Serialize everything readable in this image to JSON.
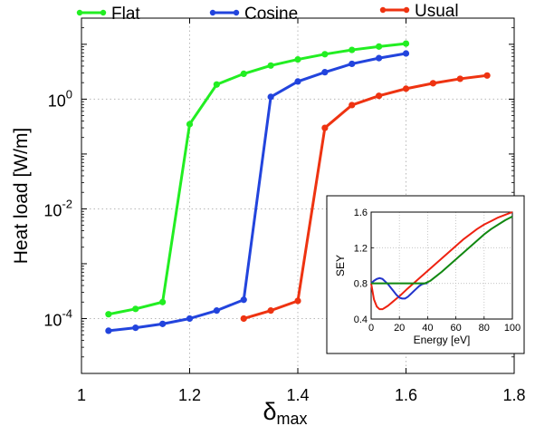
{
  "chart_data": [
    {
      "type": "line",
      "title": "",
      "xlabel": "δ",
      "xlabel_sub": "max",
      "ylabel": "Heat load [W/m]",
      "xlim": [
        1.0,
        1.8
      ],
      "ylim": [
        1e-05,
        30
      ],
      "yscale": "log",
      "grid": true,
      "legend_position": "top",
      "x_ticks": [
        1.0,
        1.2,
        1.4,
        1.6,
        1.8
      ],
      "x_tick_labels": [
        "1",
        "1.2",
        "1.4",
        "1.6",
        "1.8"
      ],
      "y_ticks": [
        0.0001,
        0.01,
        1
      ],
      "y_tick_labels": [
        {
          "base": "10",
          "exp": "-4"
        },
        {
          "base": "10",
          "exp": "-2"
        },
        {
          "base": "10",
          "exp": "0"
        }
      ],
      "series": [
        {
          "name": "Flat",
          "color": "#22ee22",
          "x": [
            1.05,
            1.1,
            1.15,
            1.2,
            1.25,
            1.3,
            1.35,
            1.4,
            1.45,
            1.5,
            1.55,
            1.6
          ],
          "y": [
            0.00012,
            0.00015,
            0.0002,
            0.35,
            1.85,
            2.9,
            4.1,
            5.3,
            6.6,
            7.9,
            9.1,
            10.3
          ]
        },
        {
          "name": "Cosine",
          "color": "#2244dd",
          "x": [
            1.05,
            1.1,
            1.15,
            1.2,
            1.25,
            1.3,
            1.35,
            1.4,
            1.45,
            1.5,
            1.55,
            1.6
          ],
          "y": [
            6e-05,
            6.8e-05,
            8e-05,
            0.0001,
            0.00014,
            0.00022,
            1.1,
            2.1,
            3.1,
            4.4,
            5.6,
            6.8
          ]
        },
        {
          "name": "Usual",
          "color": "#ee3311",
          "x": [
            1.3,
            1.35,
            1.4,
            1.45,
            1.5,
            1.55,
            1.6,
            1.65,
            1.7,
            1.75
          ],
          "y": [
            0.0001,
            0.00014,
            0.00021,
            0.3,
            0.78,
            1.15,
            1.55,
            1.95,
            2.35,
            2.7
          ]
        }
      ]
    },
    {
      "type": "line",
      "title": "",
      "xlabel": "Energy [eV]",
      "ylabel": "SEY",
      "xlim": [
        0,
        100
      ],
      "ylim": [
        0.4,
        1.6
      ],
      "grid": true,
      "x_ticks": [
        0,
        20,
        40,
        60,
        80,
        100
      ],
      "x_tick_labels": [
        "0",
        "20",
        "40",
        "60",
        "80",
        "100"
      ],
      "y_ticks": [
        0.4,
        0.8,
        1.2,
        1.6
      ],
      "y_tick_labels": [
        "0.4",
        "0.8",
        "1.2",
        "1.6"
      ],
      "series": [
        {
          "color": "#ee2211",
          "x": [
            0,
            2,
            4,
            6,
            8,
            10,
            12,
            15,
            18,
            21,
            25,
            30,
            35,
            40,
            45,
            50,
            55,
            60,
            65,
            70,
            75,
            80,
            85,
            90,
            95,
            100
          ],
          "y": [
            0.8,
            0.62,
            0.54,
            0.51,
            0.51,
            0.53,
            0.55,
            0.59,
            0.63,
            0.67,
            0.73,
            0.8,
            0.87,
            0.94,
            1.01,
            1.08,
            1.15,
            1.22,
            1.29,
            1.35,
            1.41,
            1.46,
            1.5,
            1.54,
            1.57,
            1.6
          ]
        },
        {
          "color": "#2233cc",
          "x": [
            0,
            2,
            4,
            6,
            8,
            10,
            12,
            14,
            16,
            18,
            20,
            22,
            24,
            26,
            28,
            30,
            32,
            34,
            36,
            38,
            40
          ],
          "y": [
            0.8,
            0.83,
            0.85,
            0.86,
            0.85,
            0.82,
            0.79,
            0.75,
            0.71,
            0.67,
            0.64,
            0.63,
            0.63,
            0.65,
            0.68,
            0.71,
            0.74,
            0.77,
            0.79,
            0.8,
            0.8
          ]
        },
        {
          "color": "#118811",
          "x": [
            0,
            5,
            10,
            15,
            20,
            25,
            30,
            35,
            38,
            42,
            46,
            50,
            55,
            60,
            65,
            70,
            75,
            80,
            85,
            90,
            95,
            100
          ],
          "y": [
            0.8,
            0.8,
            0.8,
            0.8,
            0.8,
            0.8,
            0.8,
            0.8,
            0.8,
            0.83,
            0.88,
            0.93,
            1.0,
            1.07,
            1.14,
            1.21,
            1.28,
            1.35,
            1.41,
            1.46,
            1.51,
            1.55
          ]
        }
      ]
    }
  ]
}
